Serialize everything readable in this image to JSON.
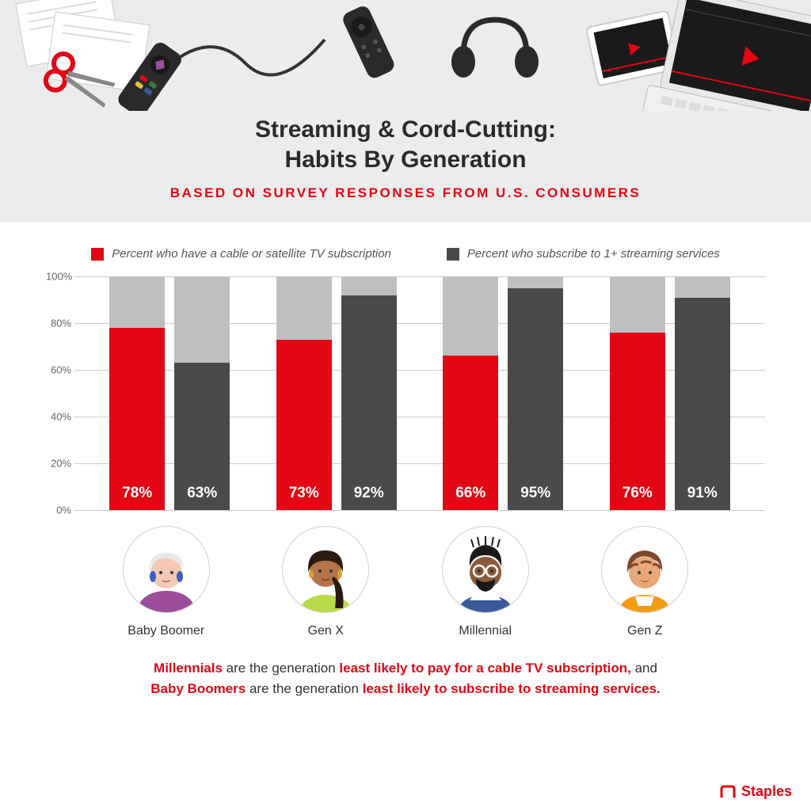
{
  "header": {
    "title_line1": "Streaming & Cord-Cutting:",
    "title_line2": "Habits By Generation",
    "subtitle": "BASED ON SURVEY RESPONSES FROM U.S. CONSUMERS",
    "bg_color": "#ececec"
  },
  "legend": {
    "series1": {
      "label": "Percent who have a cable or satellite TV subscription",
      "color": "#e30613"
    },
    "series2": {
      "label": "Percent who subscribe to 1+ streaming services",
      "color": "#4a4a4a"
    }
  },
  "chart": {
    "type": "bar",
    "ylim": [
      0,
      100
    ],
    "ytick_step": 20,
    "ytick_labels": [
      "0%",
      "20%",
      "40%",
      "60%",
      "80%",
      "100%"
    ],
    "grid_color": "#cccccc",
    "bar_bg_color": "#bfbfbf",
    "value_fontsize": 19,
    "categories": [
      "Baby Boomer",
      "Gen X",
      "Millennial",
      "Gen Z"
    ],
    "series": [
      {
        "name": "cable",
        "color": "#e30613",
        "values": [
          78,
          73,
          66,
          76
        ],
        "labels": [
          "78%",
          "73%",
          "66%",
          "76%"
        ]
      },
      {
        "name": "streaming",
        "color": "#4a4a4a",
        "values": [
          63,
          92,
          95,
          91
        ],
        "labels": [
          "63%",
          "92%",
          "95%",
          "91%"
        ]
      }
    ]
  },
  "avatars": [
    {
      "name": "Baby Boomer",
      "skin": "#f4c9b4",
      "hair": "#e8e8e8",
      "clothes": "#9b4d9b",
      "accent": "#3b5fc4"
    },
    {
      "name": "Gen X",
      "skin": "#b5754a",
      "hair": "#2a1a10",
      "clothes": "#b8d948",
      "accent": "#d8a030"
    },
    {
      "name": "Millennial",
      "skin": "#8a5a3a",
      "hair": "#1a1a1a",
      "clothes": "#3a5a9a",
      "accent": "#ffffff"
    },
    {
      "name": "Gen Z",
      "skin": "#e8a878",
      "hair": "#7a4a2a",
      "clothes": "#f39c12",
      "accent": "#ffffff"
    }
  ],
  "caption": {
    "parts": [
      {
        "text": "Millennials",
        "hl": true,
        "bold": true
      },
      {
        "text": " are the generation ",
        "hl": false,
        "bold": false
      },
      {
        "text": "least likely to pay for a cable TV subscription,",
        "hl": true,
        "bold": true
      },
      {
        "text": " and",
        "hl": false,
        "bold": false
      },
      {
        "text": "BR",
        "hl": false,
        "bold": false
      },
      {
        "text": "Baby Boomers",
        "hl": true,
        "bold": true
      },
      {
        "text": " are the generation ",
        "hl": false,
        "bold": false
      },
      {
        "text": "least likely to subscribe to streaming services.",
        "hl": true,
        "bold": true
      }
    ]
  },
  "logo": {
    "text": "Staples",
    "color": "#e30613"
  }
}
